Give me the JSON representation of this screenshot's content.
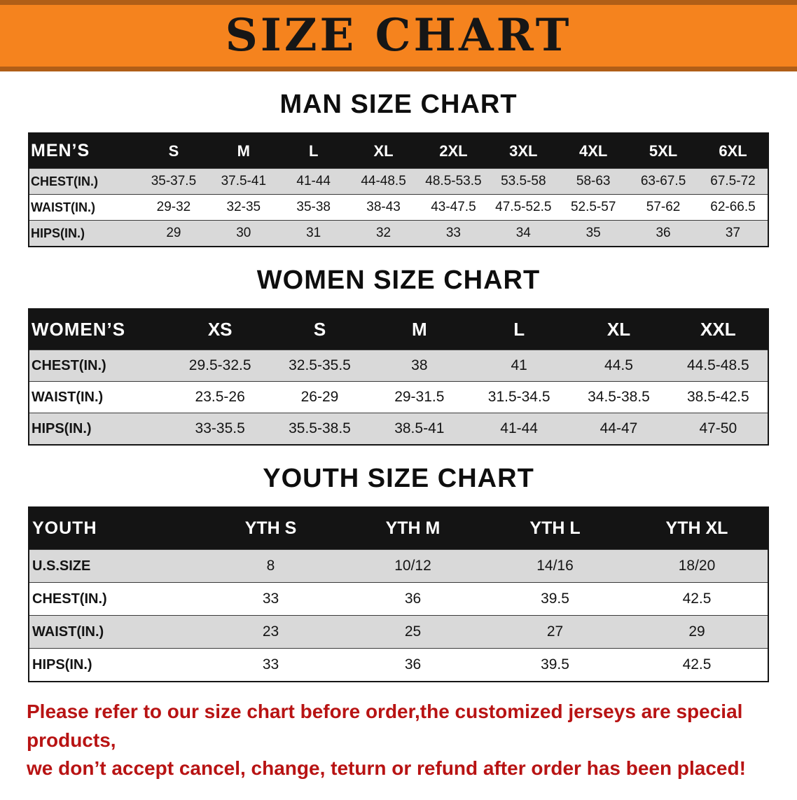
{
  "banner": {
    "title": "SIZE CHART"
  },
  "sections": [
    {
      "heading": "MAN SIZE CHART",
      "table": {
        "header": [
          "MEN’S",
          "S",
          "M",
          "L",
          "XL",
          "2XL",
          "3XL",
          "4XL",
          "5XL",
          "6XL"
        ],
        "rows": [
          [
            "CHEST(IN.)",
            "35-37.5",
            "37.5-41",
            "41-44",
            "44-48.5",
            "48.5-53.5",
            "53.5-58",
            "58-63",
            "63-67.5",
            "67.5-72"
          ],
          [
            "WAIST(IN.)",
            "29-32",
            "32-35",
            "35-38",
            "38-43",
            "43-47.5",
            "47.5-52.5",
            "52.5-57",
            "57-62",
            "62-66.5"
          ],
          [
            "HIPS(IN.)",
            "29",
            "30",
            "31",
            "32",
            "33",
            "34",
            "35",
            "36",
            "37"
          ]
        ]
      }
    },
    {
      "heading": "WOMEN SIZE CHART",
      "table": {
        "header": [
          "WOMEN’S",
          "XS",
          "S",
          "M",
          "L",
          "XL",
          "XXL"
        ],
        "rows": [
          [
            "CHEST(IN.)",
            "29.5-32.5",
            "32.5-35.5",
            "38",
            "41",
            "44.5",
            "44.5-48.5"
          ],
          [
            "WAIST(IN.)",
            "23.5-26",
            "26-29",
            "29-31.5",
            "31.5-34.5",
            "34.5-38.5",
            "38.5-42.5"
          ],
          [
            "HIPS(IN.)",
            "33-35.5",
            "35.5-38.5",
            "38.5-41",
            "41-44",
            "44-47",
            "47-50"
          ]
        ]
      }
    },
    {
      "heading": "YOUTH SIZE CHART",
      "table": {
        "header": [
          "YOUTH",
          "YTH S",
          "YTH M",
          "YTH L",
          "YTH XL"
        ],
        "rows": [
          [
            "U.S.SIZE",
            "8",
            "10/12",
            "14/16",
            "18/20"
          ],
          [
            "CHEST(IN.)",
            "33",
            "36",
            "39.5",
            "42.5"
          ],
          [
            "WAIST(IN.)",
            "23",
            "25",
            "27",
            "29"
          ],
          [
            "HIPS(IN.)",
            "33",
            "36",
            "39.5",
            "42.5"
          ]
        ]
      }
    }
  ],
  "disclaimer": {
    "line1": "Please refer to our size chart before order,the customized jerseys are special products,",
    "line2": "we don’t accept cancel, change, teturn or refund after order has been placed!"
  },
  "colors": {
    "banner_orange": "#f5831e",
    "banner_edge": "#b05e17",
    "header_black": "#141414",
    "row_gray": "#d9d9d9",
    "warning_red": "#b81313"
  }
}
